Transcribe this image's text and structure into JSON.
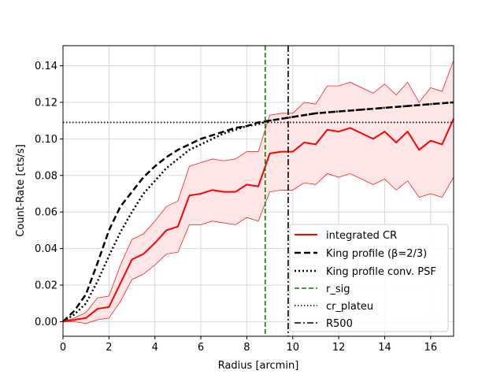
{
  "chart_data": {
    "type": "line",
    "title": "",
    "xlabel": "Radius [arcmin]",
    "ylabel": "Count-Rate [cts/s]",
    "xlim": [
      0,
      17
    ],
    "ylim": [
      -0.008,
      0.151
    ],
    "xticks": [
      0,
      2,
      4,
      6,
      8,
      10,
      12,
      14,
      16
    ],
    "xtick_labels": [
      "0",
      "2",
      "4",
      "6",
      "8",
      "10",
      "12",
      "14",
      "16"
    ],
    "yticks": [
      0.0,
      0.02,
      0.04,
      0.06,
      0.08,
      0.1,
      0.12,
      0.14
    ],
    "ytick_labels": [
      "0.00",
      "0.02",
      "0.04",
      "0.06",
      "0.08",
      "0.10",
      "0.12",
      "0.14"
    ],
    "grid": true,
    "legend_position": "lower-right",
    "colors": {
      "cr_line": "#ff0000",
      "cr_band_fill": "#ffe6e6",
      "r_sig": "#008000",
      "king": "#000000",
      "grid": "#d9d9d9"
    },
    "series": [
      {
        "name": "integrated CR",
        "style": "solid-red",
        "x": [
          0,
          0.5,
          1.0,
          1.5,
          2.0,
          2.5,
          3.0,
          3.5,
          4.0,
          4.5,
          5.0,
          5.5,
          6.0,
          6.5,
          7.0,
          7.5,
          8.0,
          8.5,
          9.0,
          9.5,
          10.0,
          10.5,
          11.0,
          11.5,
          12.0,
          12.5,
          13.0,
          13.5,
          14.0,
          14.5,
          15.0,
          15.5,
          16.0,
          16.5,
          17.0
        ],
        "y": [
          0.0,
          0.001,
          0.002,
          0.007,
          0.008,
          0.021,
          0.034,
          0.037,
          0.043,
          0.05,
          0.052,
          0.069,
          0.07,
          0.072,
          0.071,
          0.071,
          0.075,
          0.074,
          0.092,
          0.093,
          0.093,
          0.098,
          0.097,
          0.105,
          0.104,
          0.106,
          0.103,
          0.1,
          0.104,
          0.098,
          0.104,
          0.094,
          0.099,
          0.097,
          0.111
        ],
        "upper": [
          0.0,
          0.002,
          0.005,
          0.013,
          0.014,
          0.031,
          0.045,
          0.048,
          0.055,
          0.063,
          0.066,
          0.085,
          0.087,
          0.089,
          0.088,
          0.089,
          0.093,
          0.093,
          0.113,
          0.114,
          0.114,
          0.12,
          0.119,
          0.129,
          0.129,
          0.131,
          0.128,
          0.125,
          0.13,
          0.124,
          0.131,
          0.12,
          0.128,
          0.126,
          0.143
        ]
      },
      {
        "name": "King profile (β=2/3)",
        "style": "dashed-black",
        "x": [
          0,
          0.5,
          1.0,
          1.5,
          2.0,
          2.5,
          3.0,
          3.5,
          4.0,
          4.5,
          5.0,
          5.5,
          6.0,
          6.5,
          7.0,
          7.5,
          8.0,
          8.5,
          9.0,
          9.5,
          10.0,
          11.0,
          12.0,
          13.0,
          14.0,
          15.0,
          16.0,
          17.0
        ],
        "y": [
          0.0,
          0.006,
          0.015,
          0.032,
          0.05,
          0.063,
          0.071,
          0.079,
          0.085,
          0.09,
          0.094,
          0.097,
          0.1,
          0.102,
          0.104,
          0.106,
          0.107,
          0.109,
          0.11,
          0.111,
          0.112,
          0.114,
          0.115,
          0.116,
          0.117,
          0.118,
          0.119,
          0.12
        ]
      },
      {
        "name": "King profile conv. PSF",
        "style": "dotted-black",
        "x": [
          0,
          0.5,
          1.0,
          1.5,
          2.0,
          2.5,
          3.0,
          3.5,
          4.0,
          4.5,
          5.0,
          5.5,
          6.0,
          6.5,
          7.0,
          7.5,
          8.0,
          8.5,
          9.0,
          9.5,
          10.0,
          11.0,
          12.0,
          13.0,
          14.0,
          15.0,
          16.0,
          17.0
        ],
        "y": [
          0.0,
          0.004,
          0.01,
          0.022,
          0.036,
          0.049,
          0.06,
          0.07,
          0.077,
          0.084,
          0.089,
          0.094,
          0.097,
          0.1,
          0.103,
          0.105,
          0.107,
          0.108,
          0.11,
          0.111,
          0.112,
          0.114,
          0.115,
          0.116,
          0.117,
          0.118,
          0.119,
          0.12
        ]
      }
    ],
    "reference_lines": [
      {
        "name": "r_sig",
        "orientation": "vertical",
        "value": 8.8,
        "style": "dashed-green"
      },
      {
        "name": "cr_plateu",
        "orientation": "horizontal",
        "value": 0.109,
        "style": "dotted-black"
      },
      {
        "name": "R500",
        "orientation": "vertical",
        "value": 9.8,
        "style": "dashdot-black"
      }
    ]
  }
}
